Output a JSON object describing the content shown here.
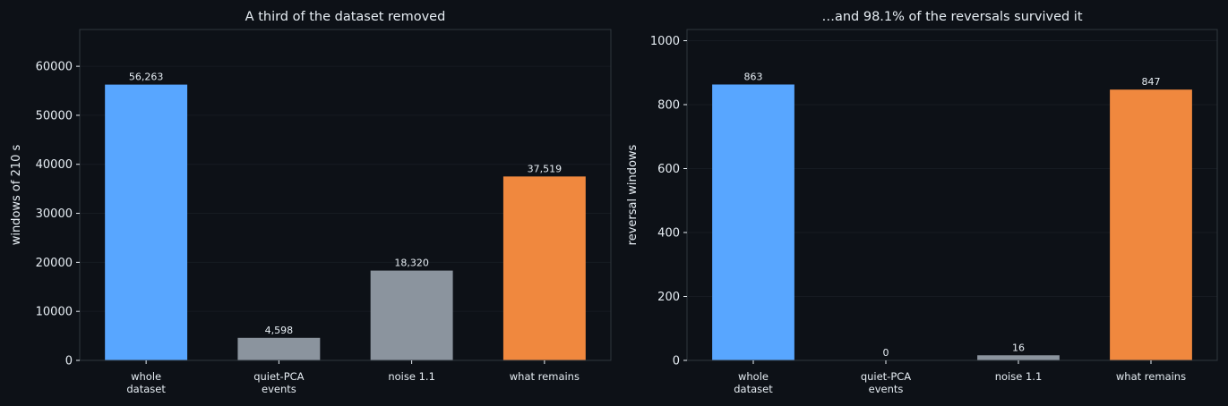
{
  "colors": {
    "background": "#0d1117",
    "axes_face": "#0d1117",
    "spine": "#30363d",
    "grid": "#161b22",
    "text": "#e6edf3",
    "blue": "#58a6ff",
    "gray": "#8b949e",
    "orange": "#f0883e"
  },
  "chart_data": [
    {
      "type": "bar",
      "title": "A third of the dataset removed",
      "xlabel": "",
      "ylabel": "windows of 210 s",
      "categories": [
        [
          "whole",
          "dataset"
        ],
        [
          "quiet-PCA",
          "events"
        ],
        [
          "noise 1.1"
        ],
        [
          "what remains"
        ]
      ],
      "values": [
        56263,
        4598,
        18320,
        37519
      ],
      "value_labels": [
        "56,263",
        "4,598",
        "18,320",
        "37,519"
      ],
      "bar_colors": [
        "#58a6ff",
        "#8b949e",
        "#8b949e",
        "#f0883e"
      ],
      "ylim": [
        0,
        67500
      ],
      "yticks": [
        0,
        10000,
        20000,
        30000,
        40000,
        50000,
        60000
      ],
      "ytick_labels": [
        "0",
        "10000",
        "20000",
        "30000",
        "40000",
        "50000",
        "60000"
      ],
      "grid": true
    },
    {
      "type": "bar",
      "title": "…and 98.1% of the reversals survived it",
      "xlabel": "",
      "ylabel": "reversal windows",
      "categories": [
        [
          "whole",
          "dataset"
        ],
        [
          "quiet-PCA",
          "events"
        ],
        [
          "noise 1.1"
        ],
        [
          "what remains"
        ]
      ],
      "values": [
        863,
        0,
        16,
        847
      ],
      "value_labels": [
        "863",
        "0",
        "16",
        "847"
      ],
      "bar_colors": [
        "#58a6ff",
        "#8b949e",
        "#8b949e",
        "#f0883e"
      ],
      "ylim": [
        0,
        1035
      ],
      "yticks": [
        0,
        200,
        400,
        600,
        800,
        1000
      ],
      "ytick_labels": [
        "0",
        "200",
        "400",
        "600",
        "800",
        "1000"
      ],
      "grid": true
    }
  ]
}
